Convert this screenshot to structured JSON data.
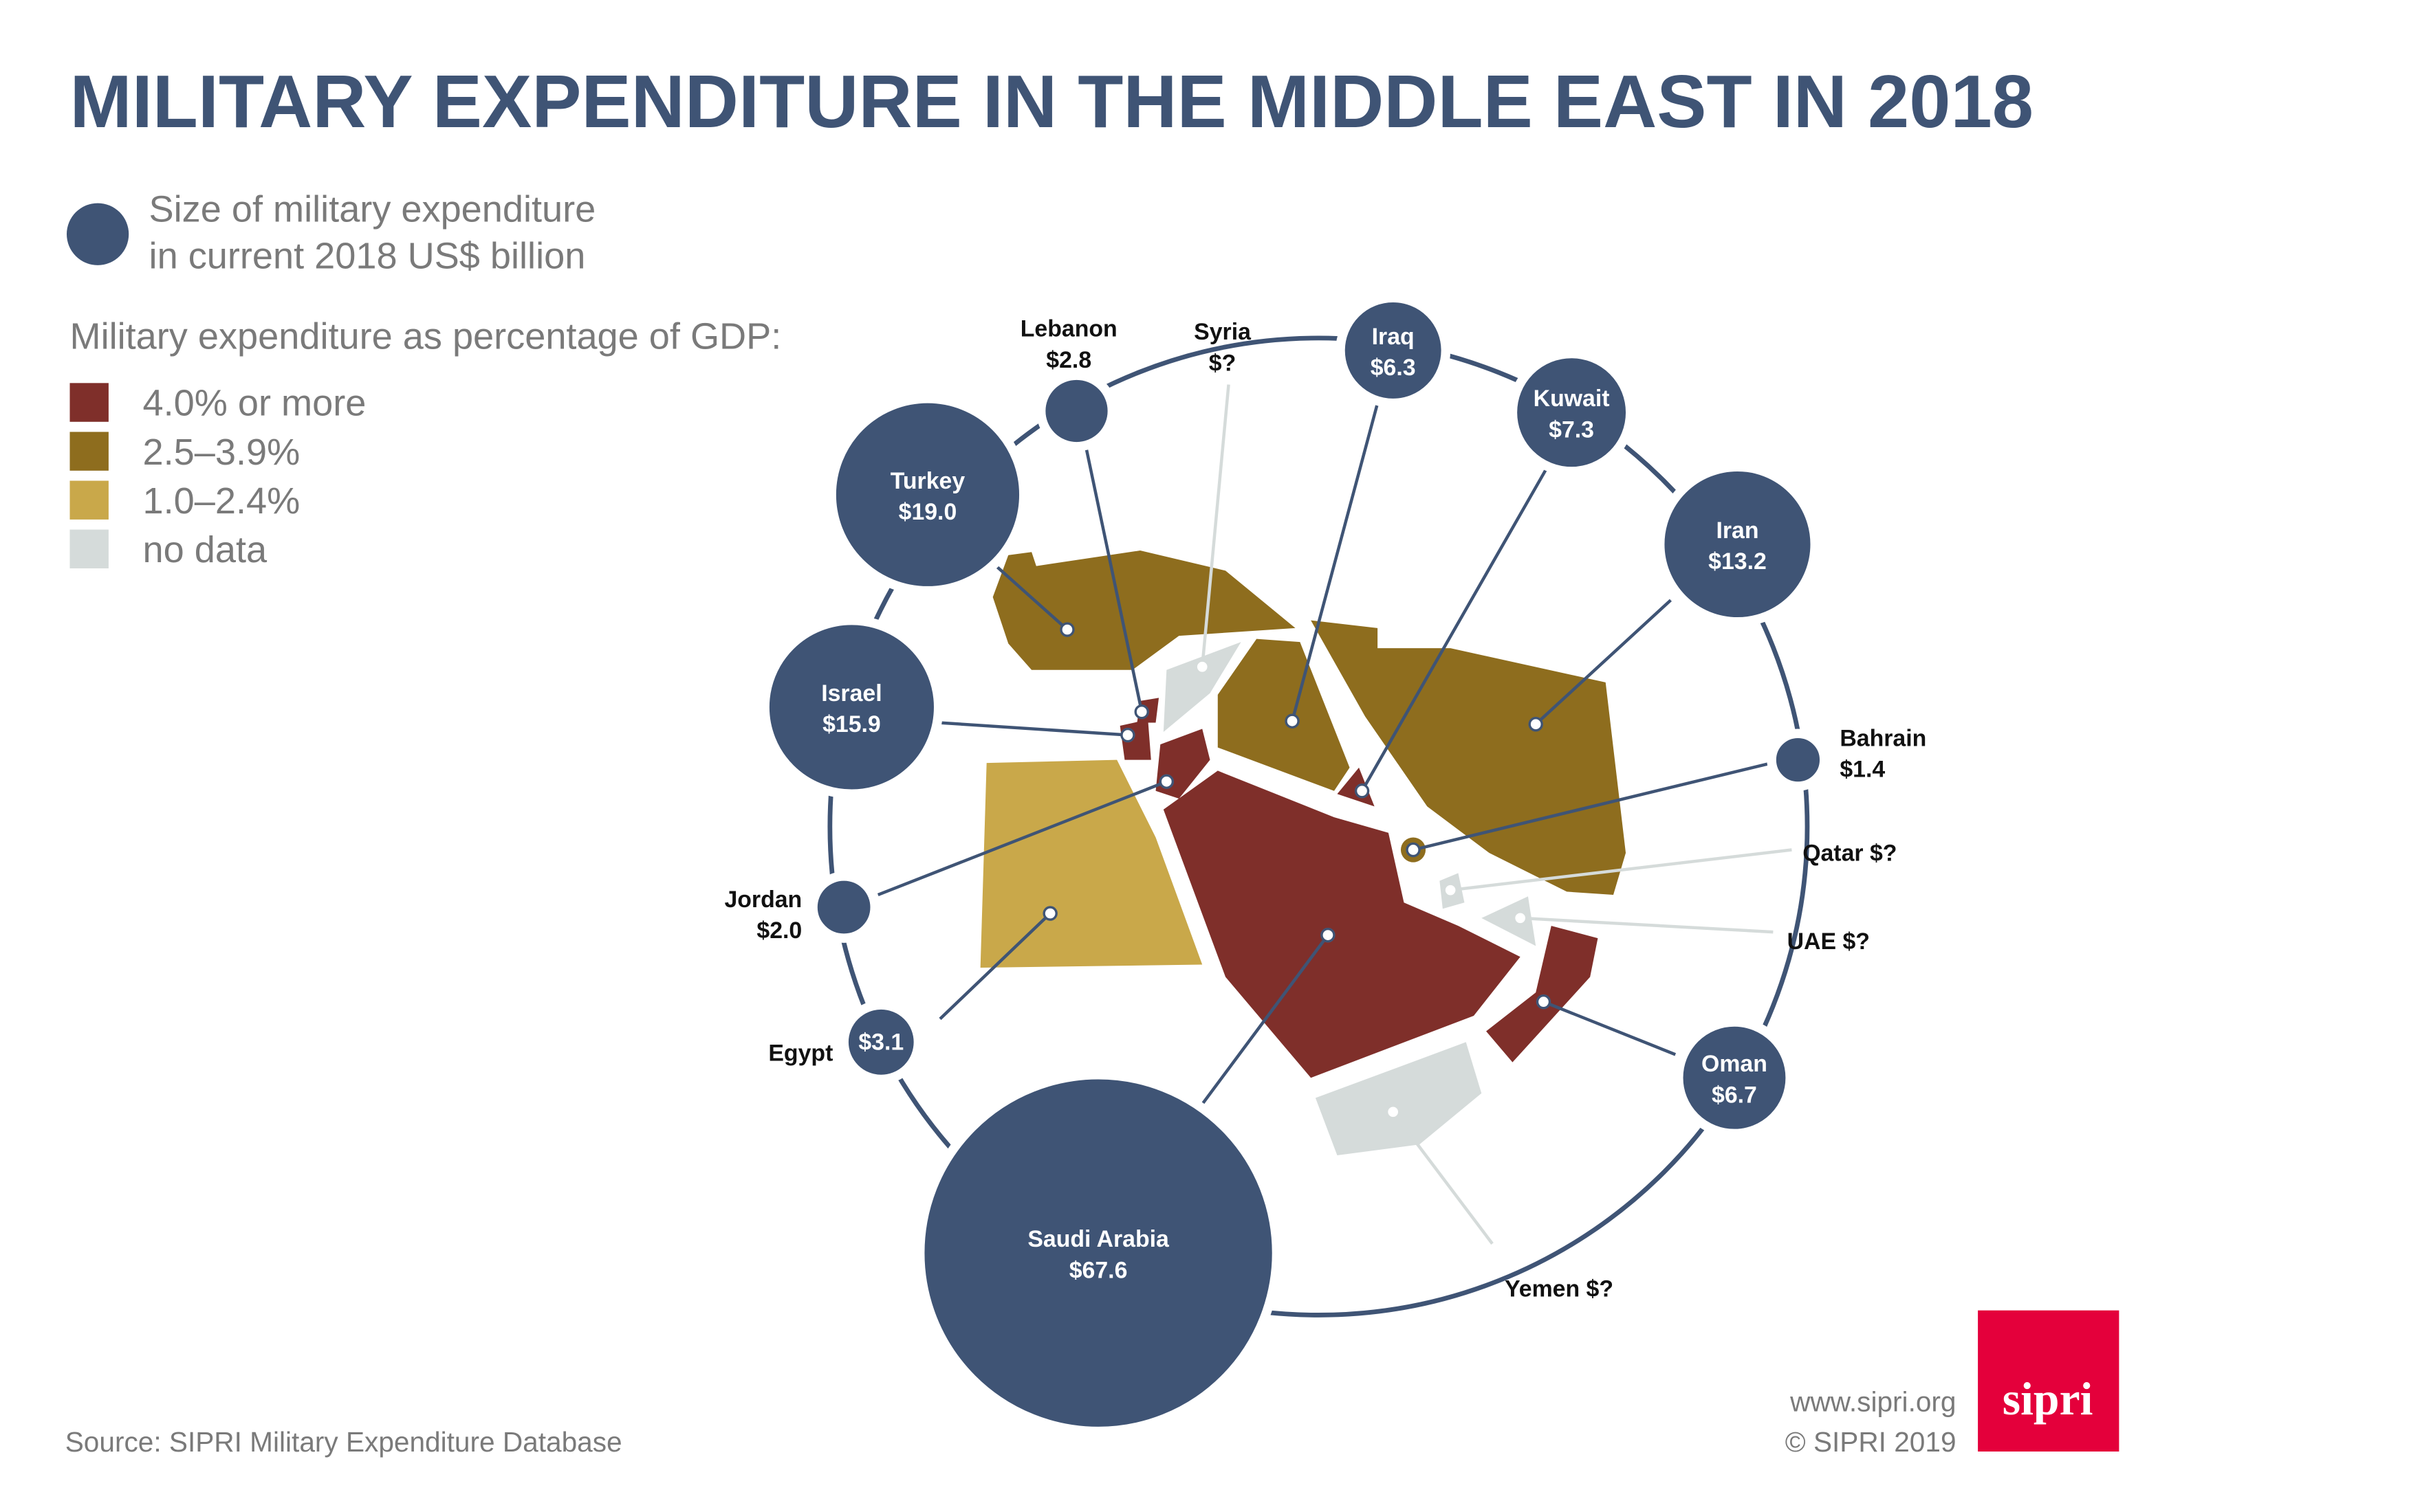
{
  "title": "MILITARY EXPENDITURE IN THE MIDDLE EAST IN 2018",
  "legend": {
    "size_line1": "Size of military expenditure",
    "size_line2": "in current 2018 US$ billion",
    "gdp_title": "Military expenditure as percentage of GDP:",
    "categories": [
      {
        "label": "4.0% or more",
        "color": "#7f2f2a"
      },
      {
        "label": "2.5–3.9%",
        "color": "#8e6d1e"
      },
      {
        "label": "1.0–2.4%",
        "color": "#c9a84a"
      },
      {
        "label": "no data",
        "color": "#d5dbda"
      }
    ]
  },
  "colors": {
    "bubble": "#3f5475",
    "ring": "#3f5475",
    "logo": "#e4003b"
  },
  "chart_data": {
    "type": "bubble-map",
    "title": "MILITARY EXPENDITURE IN THE MIDDLE EAST IN 2018",
    "unit": "current 2018 US$ billion",
    "countries": [
      {
        "name": "Lebanon",
        "label": "$2.8",
        "value": 2.8,
        "gdp_category": "4.0% or more"
      },
      {
        "name": "Syria",
        "label": "$?",
        "value": null,
        "gdp_category": "no data"
      },
      {
        "name": "Iraq",
        "label": "$6.3",
        "value": 6.3,
        "gdp_category": "2.5–3.9%"
      },
      {
        "name": "Kuwait",
        "label": "$7.3",
        "value": 7.3,
        "gdp_category": "4.0% or more"
      },
      {
        "name": "Iran",
        "label": "$13.2",
        "value": 13.2,
        "gdp_category": "2.5–3.9%"
      },
      {
        "name": "Turkey",
        "label": "$19.0",
        "value": 19.0,
        "gdp_category": "2.5–3.9%"
      },
      {
        "name": "Israel",
        "label": "$15.9",
        "value": 15.9,
        "gdp_category": "4.0% or more"
      },
      {
        "name": "Bahrain",
        "label": "$1.4",
        "value": 1.4,
        "gdp_category": "2.5–3.9%"
      },
      {
        "name": "Qatar",
        "label": "$?",
        "value": null,
        "gdp_category": "no data"
      },
      {
        "name": "UAE",
        "label": "$?",
        "value": null,
        "gdp_category": "no data"
      },
      {
        "name": "Jordan",
        "label": "$2.0",
        "value": 2.0,
        "gdp_category": "4.0% or more"
      },
      {
        "name": "Egypt",
        "label": "$3.1",
        "value": 3.1,
        "gdp_category": "1.0–2.4%"
      },
      {
        "name": "Oman",
        "label": "$6.7",
        "value": 6.7,
        "gdp_category": "4.0% or more"
      },
      {
        "name": "Saudi Arabia",
        "label": "$67.6",
        "value": 67.6,
        "gdp_category": "4.0% or more"
      },
      {
        "name": "Yemen",
        "label": "$?",
        "value": null,
        "gdp_category": "no data"
      }
    ]
  },
  "footer": {
    "source": "Source: SIPRI Military Expenditure Database",
    "website": "www.sipri.org",
    "copyright": "© SIPRI 2019",
    "logo": "sipri"
  }
}
